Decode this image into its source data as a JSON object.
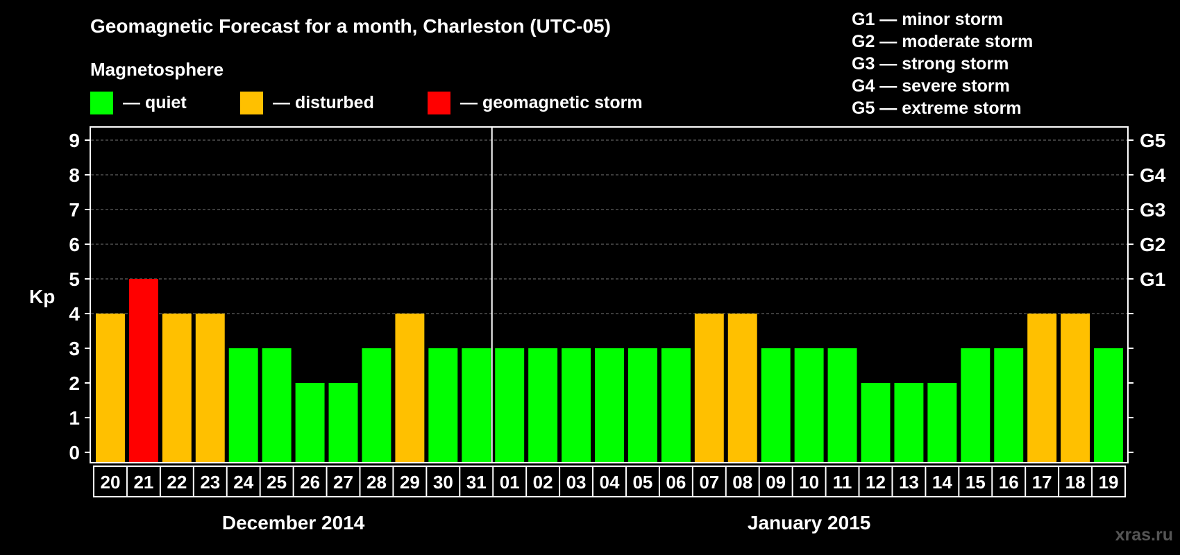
{
  "header": {
    "title": "Geomagnetic Forecast for a month, Charleston (UTC-05)",
    "subtitle": "Magnetosphere"
  },
  "legend": [
    {
      "label": "— quiet",
      "color": "#00ff00"
    },
    {
      "label": "— disturbed",
      "color": "#ffc000"
    },
    {
      "label": "— geomagnetic storm",
      "color": "#ff0000"
    }
  ],
  "g_legend": [
    "G1 — minor storm",
    "G2 — moderate storm",
    "G3 — strong storm",
    "G4 — severe storm",
    "G5 — extreme storm"
  ],
  "credit": "xras.ru",
  "chart_data": {
    "type": "bar",
    "title": "Geomagnetic Forecast for a month, Charleston (UTC-05)",
    "ylabel": "Kp",
    "ylim": [
      0,
      9
    ],
    "yticks": [
      0,
      1,
      2,
      3,
      4,
      5,
      6,
      7,
      8,
      9
    ],
    "right_ticks": [
      {
        "value": 5,
        "label": "G1"
      },
      {
        "value": 6,
        "label": "G2"
      },
      {
        "value": 7,
        "label": "G3"
      },
      {
        "value": 8,
        "label": "G4"
      },
      {
        "value": 9,
        "label": "G5"
      }
    ],
    "categories": [
      "20",
      "21",
      "22",
      "23",
      "24",
      "25",
      "26",
      "27",
      "28",
      "29",
      "30",
      "31",
      "01",
      "02",
      "03",
      "04",
      "05",
      "06",
      "07",
      "08",
      "09",
      "10",
      "11",
      "12",
      "13",
      "14",
      "15",
      "16",
      "17",
      "18",
      "19"
    ],
    "values": [
      4,
      5,
      4,
      4,
      3,
      3,
      2,
      2,
      3,
      4,
      3,
      3,
      3,
      3,
      3,
      3,
      3,
      3,
      4,
      4,
      3,
      3,
      3,
      2,
      2,
      2,
      3,
      3,
      4,
      4,
      3
    ],
    "months": [
      {
        "label": "December 2014",
        "count": 12
      },
      {
        "label": "January 2015",
        "count": 19
      }
    ],
    "colors": {
      "quiet": "#00ff00",
      "disturbed": "#ffc000",
      "storm": "#ff0000"
    }
  }
}
